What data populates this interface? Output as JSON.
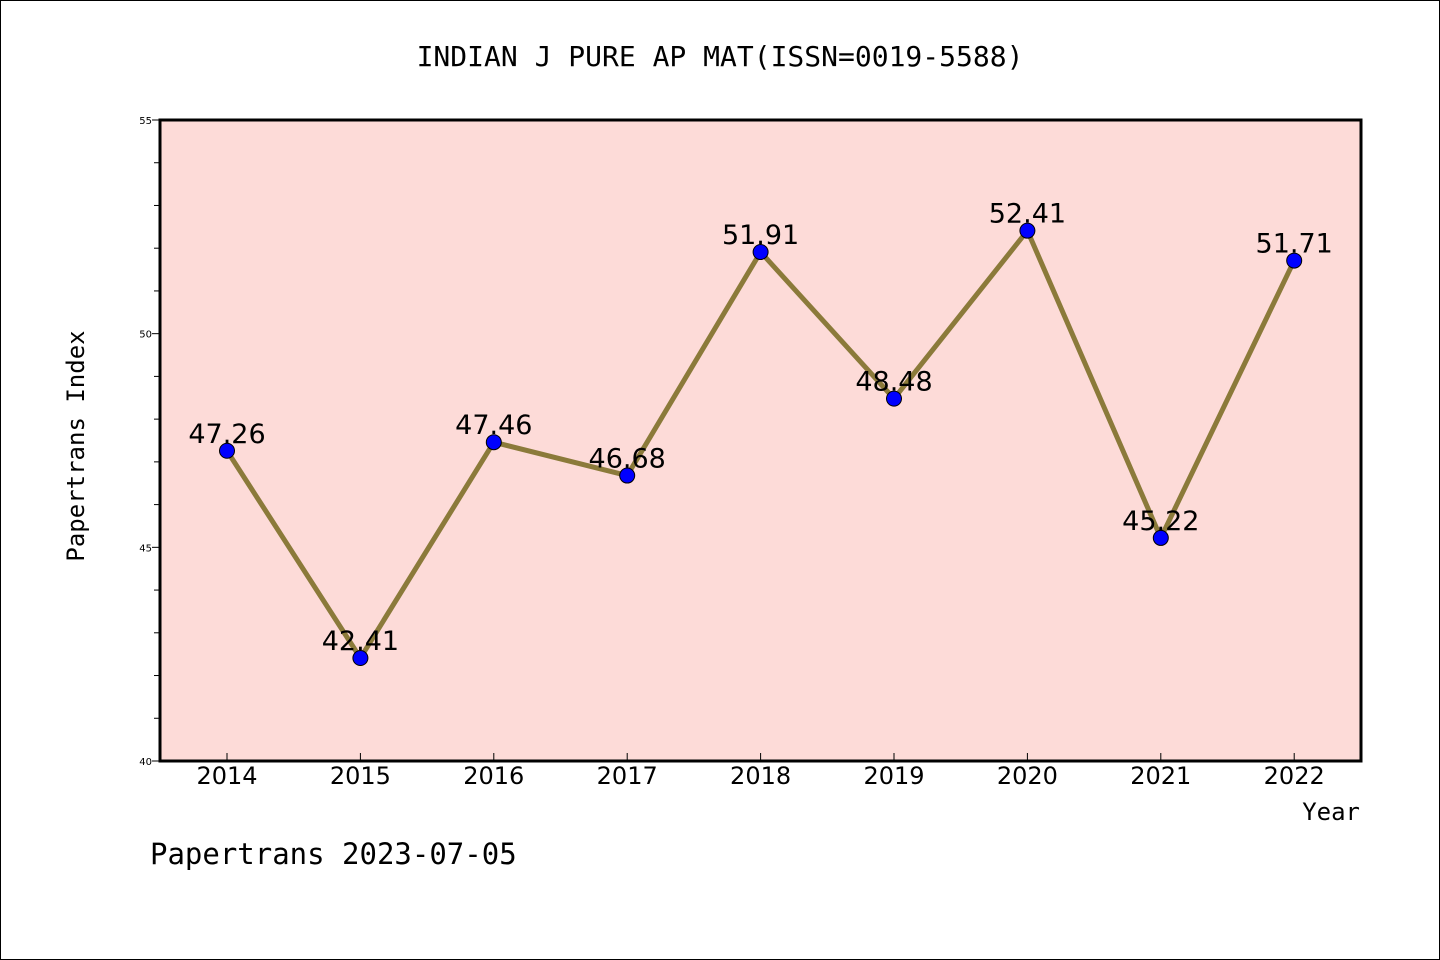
{
  "chart_data": {
    "type": "line",
    "title": "INDIAN J PURE AP MAT(ISSN=0019-5588)",
    "xlabel": "Year",
    "ylabel": "Papertrans Index",
    "categories": [
      "2014",
      "2015",
      "2016",
      "2017",
      "2018",
      "2019",
      "2020",
      "2021",
      "2022"
    ],
    "values": [
      47.26,
      42.41,
      47.46,
      46.68,
      51.91,
      48.48,
      52.41,
      45.22,
      51.71
    ],
    "data_labels": [
      "47.26",
      "42.41",
      "47.46",
      "46.68",
      "51.91",
      "48.48",
      "52.41",
      "45.22",
      "51.71"
    ],
    "ylim": [
      40,
      55
    ],
    "y_ticks": [
      "40",
      "45",
      "50",
      "55"
    ],
    "grid": false,
    "legend": "none"
  },
  "footer": {
    "text": "Papertrans 2023-07-05"
  },
  "colors": {
    "plot_background": "#fddbd8",
    "line": "#8b7a3a",
    "marker": "#0000ff",
    "axis": "#000000"
  }
}
